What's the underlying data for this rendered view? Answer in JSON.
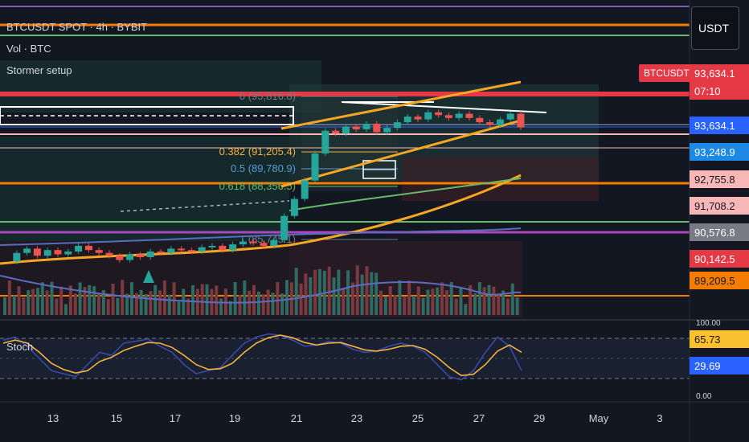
{
  "header": {
    "symbol_line": "BTCUSDT SPOT · 4h · BYBIT",
    "vol_line": "Vol · BTC",
    "indicator_line": "Stormer setup",
    "stoch_label": "Stoch"
  },
  "currency_button": "USDT",
  "symbol_tag": "BTCUSDT",
  "price_tags": [
    {
      "label": "93,634.1",
      "bg": "#e53945",
      "fg": "#ffffff"
    },
    {
      "label": "07:10",
      "bg": "#e53945",
      "fg": "#ffffff"
    },
    {
      "label": "93,634.1",
      "bg": "#2962ff",
      "fg": "#ffffff"
    },
    {
      "label": "93,248.9",
      "bg": "#1e88e5",
      "fg": "#ffffff"
    },
    {
      "label": "92,755.8",
      "bg": "#f7b7b7",
      "fg": "#131722"
    },
    {
      "label": "91,708.2",
      "bg": "#f7b7b7",
      "fg": "#131722"
    },
    {
      "label": "90,576.8",
      "bg": "#787b86",
      "fg": "#ffffff"
    },
    {
      "label": "90,142.5",
      "bg": "#e53945",
      "fg": "#ffffff"
    },
    {
      "label": "89,209.5",
      "bg": "#f57c00",
      "fg": "#131722"
    },
    {
      "label": "65.73",
      "bg": "#fbc02d",
      "fg": "#131722"
    },
    {
      "label": "29.69",
      "bg": "#2962ff",
      "fg": "#ffffff"
    }
  ],
  "fib_labels": {
    "level_0": "0 (95,816.8)",
    "level_382": "0.382 (91,205.4)",
    "level_5": "0.5 (89,780.9)",
    "level_618": "0.618 (88,356.5)",
    "level_1": "1 (85,745.1)"
  },
  "stoch_axis": {
    "top": "100.00",
    "bottom": "0.00"
  },
  "chart_data": {
    "type": "candlestick",
    "title": "BTCUSDT SPOT · 4h · BYBIT",
    "x_ticks": [
      "13",
      "15",
      "17",
      "19",
      "21",
      "23",
      "25",
      "27",
      "29",
      "May",
      "3"
    ],
    "y_ticks": [
      "93,634.1",
      "93,248.9",
      "92,755.8",
      "91,708.2",
      "90,576.8",
      "90,142.5",
      "89,209.5"
    ],
    "last_price": 93634.1,
    "close_series": [
      84200,
      84800,
      85100,
      84600,
      85000,
      84700,
      84900,
      85300,
      85000,
      84800,
      84600,
      84300,
      84700,
      84500,
      84900,
      84800,
      85100,
      85000,
      84900,
      85200,
      85300,
      85000,
      85400,
      85600,
      85500,
      85300,
      85700,
      87400,
      88600,
      89900,
      91800,
      93400,
      93200,
      93700,
      93500,
      93900,
      93300,
      93600,
      94000,
      94400,
      94200,
      94700,
      94500,
      94300,
      94600,
      94300,
      94000,
      93800,
      94200,
      94600,
      93634
    ],
    "stoch_k": [
      80,
      85,
      70,
      50,
      30,
      25,
      20,
      40,
      60,
      55,
      75,
      78,
      82,
      70,
      60,
      40,
      25,
      30,
      35,
      55,
      75,
      85,
      90,
      88,
      80,
      70,
      72,
      78,
      75,
      65,
      60,
      62,
      70,
      75,
      70,
      60,
      40,
      20,
      15,
      30,
      60,
      85,
      70,
      30
    ],
    "stoch_d": [
      75,
      80,
      75,
      60,
      42,
      32,
      26,
      30,
      45,
      52,
      63,
      70,
      76,
      75,
      68,
      55,
      40,
      32,
      33,
      42,
      60,
      75,
      84,
      88,
      84,
      76,
      72,
      75,
      76,
      70,
      64,
      62,
      65,
      70,
      71,
      65,
      52,
      35,
      22,
      24,
      40,
      62,
      72,
      60
    ],
    "stoch_levels": [
      80,
      20
    ]
  }
}
